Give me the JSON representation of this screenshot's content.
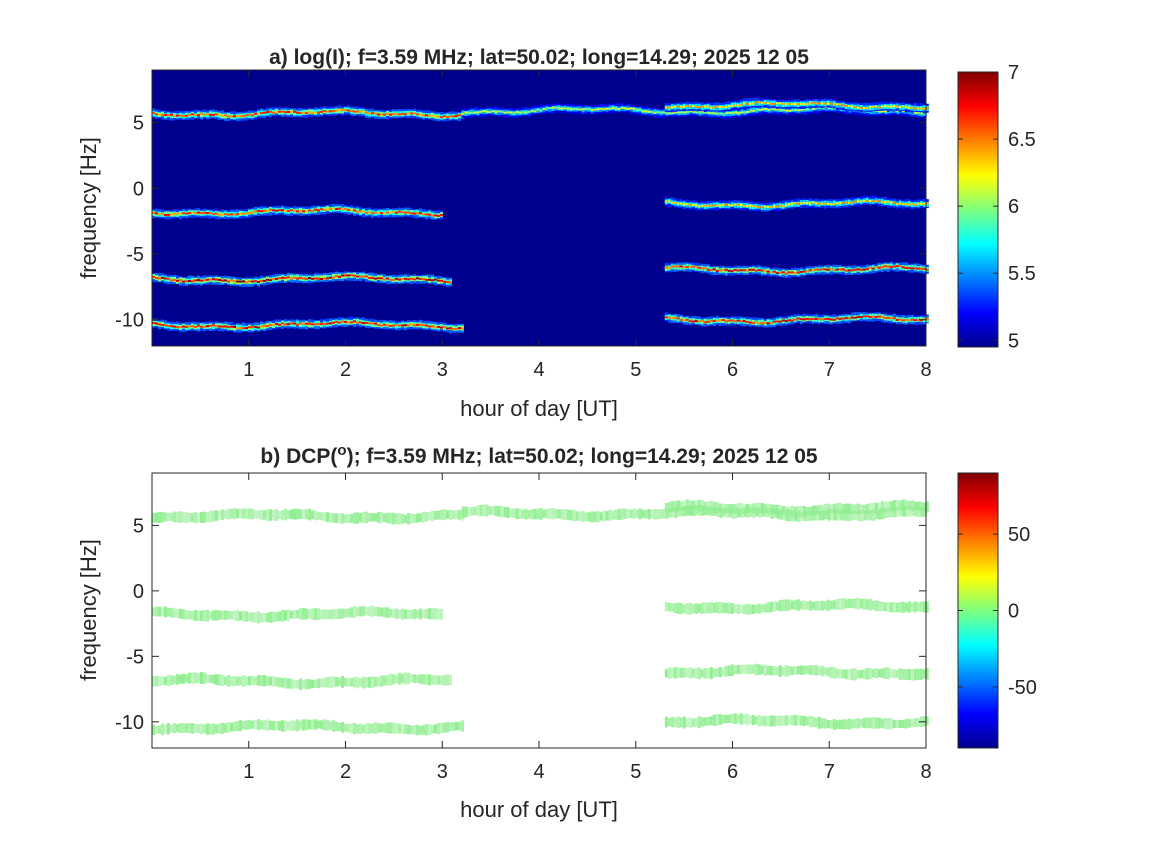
{
  "chart_data": [
    {
      "type": "heatmap",
      "title_main": "a) log(I); f=3.59 MHz;  lat=50.02; long=14.29; 2025 12 05",
      "xlabel": "hour of day [UT]",
      "ylabel": "frequency [Hz]",
      "xlim": [
        0,
        8
      ],
      "ylim": [
        -12,
        9
      ],
      "xticks": [
        1,
        2,
        3,
        4,
        5,
        6,
        7,
        8
      ],
      "yticks": [
        5,
        0,
        -5,
        -10
      ],
      "grid": false,
      "background_color": "#00008f",
      "colormap": "jet",
      "colorbar": {
        "min": 4.95,
        "max": 7.0,
        "ticks": [
          7,
          6.5,
          6,
          5.5,
          5
        ]
      },
      "traces": [
        {
          "freq": 5.7,
          "x": [
            0.0,
            3.2
          ],
          "peak_value": 6.8
        },
        {
          "freq": 5.9,
          "x": [
            3.2,
            8.0
          ],
          "peak_value": 6.2
        },
        {
          "freq": 6.3,
          "x": [
            5.3,
            8.0
          ],
          "peak_value": 6.5
        },
        {
          "freq": -1.8,
          "x": [
            0.0,
            3.0
          ],
          "peak_value": 6.8
        },
        {
          "freq": -1.2,
          "x": [
            5.3,
            8.0
          ],
          "peak_value": 6.5
        },
        {
          "freq": -6.9,
          "x": [
            0.0,
            3.1
          ],
          "peak_value": 7.0
        },
        {
          "freq": -6.2,
          "x": [
            5.3,
            8.0
          ],
          "peak_value": 6.9
        },
        {
          "freq": -10.4,
          "x": [
            0.0,
            3.2
          ],
          "peak_value": 6.9
        },
        {
          "freq": -10.0,
          "x": [
            5.3,
            8.0
          ],
          "peak_value": 6.9
        }
      ]
    },
    {
      "type": "heatmap",
      "title_main": "b) DCP(",
      "title_sup": "o",
      "title_rest": "); f=3.59 MHz;  lat=50.02; long=14.29; 2025 12 05",
      "xlabel": "hour of day [UT]",
      "ylabel": "frequency [Hz]",
      "xlim": [
        0,
        8
      ],
      "ylim": [
        -12,
        9
      ],
      "xticks": [
        1,
        2,
        3,
        4,
        5,
        6,
        7,
        8
      ],
      "yticks": [
        5,
        0,
        -5,
        -10
      ],
      "grid": false,
      "background_color": "#ffffff",
      "trace_color": "#90ee90",
      "colormap": "jet",
      "colorbar": {
        "min": -90,
        "max": 90,
        "ticks": [
          50,
          0,
          -50
        ]
      },
      "traces": [
        {
          "freq": 5.7,
          "x": [
            0.0,
            3.2
          ],
          "value": 0
        },
        {
          "freq": 5.9,
          "x": [
            3.2,
            8.0
          ],
          "value": 0
        },
        {
          "freq": 6.3,
          "x": [
            5.3,
            8.0
          ],
          "value": 0
        },
        {
          "freq": -1.8,
          "x": [
            0.0,
            3.0
          ],
          "value": 0
        },
        {
          "freq": -1.2,
          "x": [
            5.3,
            8.0
          ],
          "value": 0
        },
        {
          "freq": -6.9,
          "x": [
            0.0,
            3.1
          ],
          "value": 0
        },
        {
          "freq": -6.2,
          "x": [
            5.3,
            8.0
          ],
          "value": 0
        },
        {
          "freq": -10.4,
          "x": [
            0.0,
            3.2
          ],
          "value": 0
        },
        {
          "freq": -10.0,
          "x": [
            5.3,
            8.0
          ],
          "value": 0
        }
      ]
    }
  ]
}
